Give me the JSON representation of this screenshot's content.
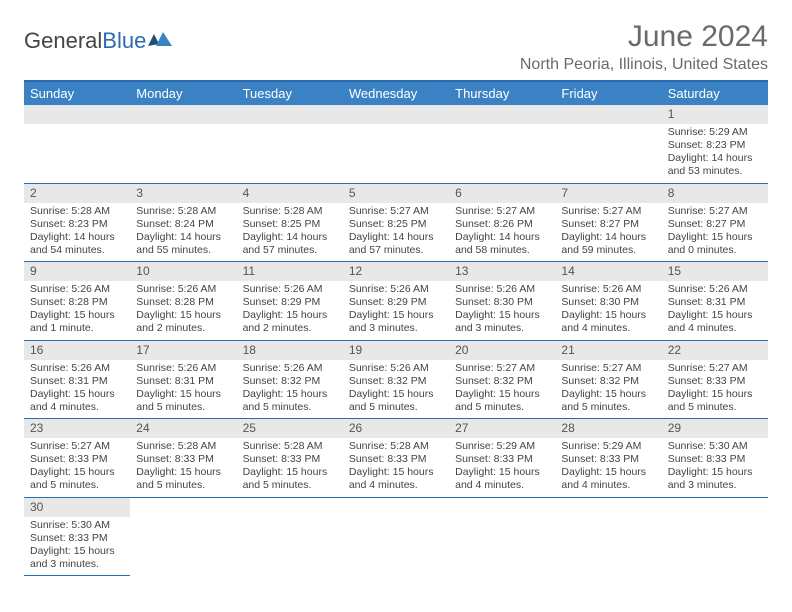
{
  "brand": {
    "part1": "General",
    "part2": "Blue"
  },
  "title": "June 2024",
  "location": "North Peoria, Illinois, United States",
  "colors": {
    "header_bg": "#3b82c4",
    "header_border": "#2b6cb0",
    "daynum_bg": "#e8e8e8",
    "text": "#444444"
  },
  "dayHeaders": [
    "Sunday",
    "Monday",
    "Tuesday",
    "Wednesday",
    "Thursday",
    "Friday",
    "Saturday"
  ],
  "weeks": [
    [
      null,
      null,
      null,
      null,
      null,
      null,
      {
        "n": "1",
        "sr": "5:29 AM",
        "ss": "8:23 PM",
        "dl": "14 hours and 53 minutes."
      }
    ],
    [
      {
        "n": "2",
        "sr": "5:28 AM",
        "ss": "8:23 PM",
        "dl": "14 hours and 54 minutes."
      },
      {
        "n": "3",
        "sr": "5:28 AM",
        "ss": "8:24 PM",
        "dl": "14 hours and 55 minutes."
      },
      {
        "n": "4",
        "sr": "5:28 AM",
        "ss": "8:25 PM",
        "dl": "14 hours and 57 minutes."
      },
      {
        "n": "5",
        "sr": "5:27 AM",
        "ss": "8:25 PM",
        "dl": "14 hours and 57 minutes."
      },
      {
        "n": "6",
        "sr": "5:27 AM",
        "ss": "8:26 PM",
        "dl": "14 hours and 58 minutes."
      },
      {
        "n": "7",
        "sr": "5:27 AM",
        "ss": "8:27 PM",
        "dl": "14 hours and 59 minutes."
      },
      {
        "n": "8",
        "sr": "5:27 AM",
        "ss": "8:27 PM",
        "dl": "15 hours and 0 minutes."
      }
    ],
    [
      {
        "n": "9",
        "sr": "5:26 AM",
        "ss": "8:28 PM",
        "dl": "15 hours and 1 minute."
      },
      {
        "n": "10",
        "sr": "5:26 AM",
        "ss": "8:28 PM",
        "dl": "15 hours and 2 minutes."
      },
      {
        "n": "11",
        "sr": "5:26 AM",
        "ss": "8:29 PM",
        "dl": "15 hours and 2 minutes."
      },
      {
        "n": "12",
        "sr": "5:26 AM",
        "ss": "8:29 PM",
        "dl": "15 hours and 3 minutes."
      },
      {
        "n": "13",
        "sr": "5:26 AM",
        "ss": "8:30 PM",
        "dl": "15 hours and 3 minutes."
      },
      {
        "n": "14",
        "sr": "5:26 AM",
        "ss": "8:30 PM",
        "dl": "15 hours and 4 minutes."
      },
      {
        "n": "15",
        "sr": "5:26 AM",
        "ss": "8:31 PM",
        "dl": "15 hours and 4 minutes."
      }
    ],
    [
      {
        "n": "16",
        "sr": "5:26 AM",
        "ss": "8:31 PM",
        "dl": "15 hours and 4 minutes."
      },
      {
        "n": "17",
        "sr": "5:26 AM",
        "ss": "8:31 PM",
        "dl": "15 hours and 5 minutes."
      },
      {
        "n": "18",
        "sr": "5:26 AM",
        "ss": "8:32 PM",
        "dl": "15 hours and 5 minutes."
      },
      {
        "n": "19",
        "sr": "5:26 AM",
        "ss": "8:32 PM",
        "dl": "15 hours and 5 minutes."
      },
      {
        "n": "20",
        "sr": "5:27 AM",
        "ss": "8:32 PM",
        "dl": "15 hours and 5 minutes."
      },
      {
        "n": "21",
        "sr": "5:27 AM",
        "ss": "8:32 PM",
        "dl": "15 hours and 5 minutes."
      },
      {
        "n": "22",
        "sr": "5:27 AM",
        "ss": "8:33 PM",
        "dl": "15 hours and 5 minutes."
      }
    ],
    [
      {
        "n": "23",
        "sr": "5:27 AM",
        "ss": "8:33 PM",
        "dl": "15 hours and 5 minutes."
      },
      {
        "n": "24",
        "sr": "5:28 AM",
        "ss": "8:33 PM",
        "dl": "15 hours and 5 minutes."
      },
      {
        "n": "25",
        "sr": "5:28 AM",
        "ss": "8:33 PM",
        "dl": "15 hours and 5 minutes."
      },
      {
        "n": "26",
        "sr": "5:28 AM",
        "ss": "8:33 PM",
        "dl": "15 hours and 4 minutes."
      },
      {
        "n": "27",
        "sr": "5:29 AM",
        "ss": "8:33 PM",
        "dl": "15 hours and 4 minutes."
      },
      {
        "n": "28",
        "sr": "5:29 AM",
        "ss": "8:33 PM",
        "dl": "15 hours and 4 minutes."
      },
      {
        "n": "29",
        "sr": "5:30 AM",
        "ss": "8:33 PM",
        "dl": "15 hours and 3 minutes."
      }
    ],
    [
      {
        "n": "30",
        "sr": "5:30 AM",
        "ss": "8:33 PM",
        "dl": "15 hours and 3 minutes."
      },
      null,
      null,
      null,
      null,
      null,
      null
    ]
  ],
  "labels": {
    "sunrise": "Sunrise: ",
    "sunset": "Sunset: ",
    "daylight": "Daylight: "
  }
}
